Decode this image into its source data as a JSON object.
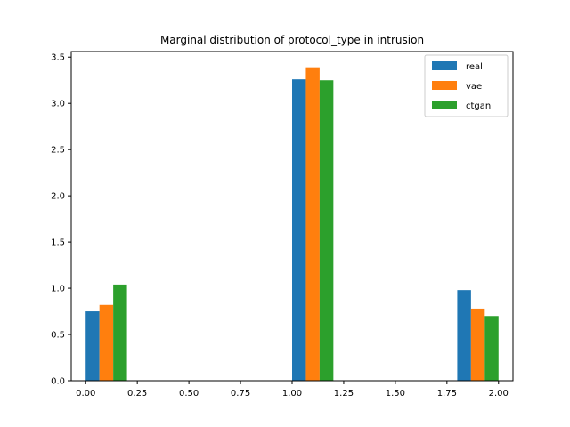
{
  "chart_data": {
    "type": "bar",
    "title": "Marginal distribution of protocol_type in intrusion",
    "xlabel": "",
    "ylabel": "",
    "xlim": [
      -0.07,
      2.07
    ],
    "ylim": [
      0,
      3.56
    ],
    "xticks": [
      "0.00",
      "0.25",
      "0.50",
      "0.75",
      "1.00",
      "1.25",
      "1.50",
      "1.75",
      "2.00"
    ],
    "xtick_values": [
      0,
      0.25,
      0.5,
      0.75,
      1.0,
      1.25,
      1.5,
      1.75,
      2.0
    ],
    "yticks": [
      "0.0",
      "0.5",
      "1.0",
      "1.5",
      "2.0",
      "2.5",
      "3.0",
      "3.5"
    ],
    "ytick_values": [
      0,
      0.5,
      1.0,
      1.5,
      2.0,
      2.5,
      3.0,
      3.5
    ],
    "bins": [
      [
        0.0,
        0.2
      ],
      [
        1.0,
        1.2
      ],
      [
        1.8,
        2.0
      ]
    ],
    "series": [
      {
        "name": "real",
        "color": "#1f77b4",
        "values": [
          0.75,
          3.26,
          0.98
        ]
      },
      {
        "name": "vae",
        "color": "#ff7f0e",
        "values": [
          0.82,
          3.39,
          0.78
        ]
      },
      {
        "name": "ctgan",
        "color": "#2ca02c",
        "values": [
          1.04,
          3.25,
          0.7
        ]
      }
    ],
    "legend_position": "top-right",
    "grid": false
  }
}
